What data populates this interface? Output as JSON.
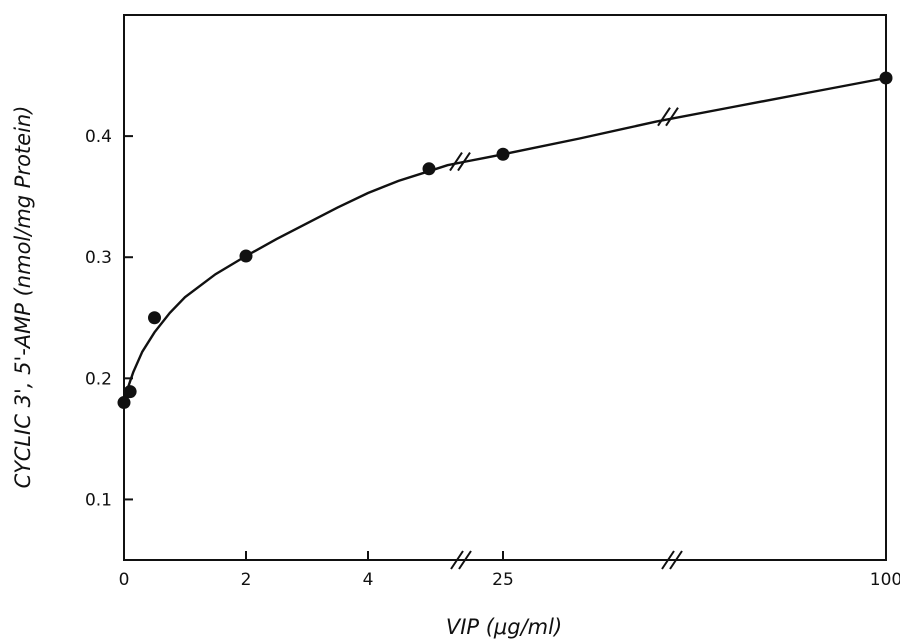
{
  "chart_data": {
    "type": "line",
    "title": "",
    "xlabel": "VIP (μg/ml)",
    "ylabel": "CYCLIC 3', 5'-AMP (nmol/mg Protein)",
    "x_axis_breaks": [
      "between 4 and 25",
      "between 25 and 100"
    ],
    "x_ticks": [
      0,
      2,
      4,
      25,
      100
    ],
    "x_tick_labels": [
      "0",
      "2",
      "4",
      "25",
      "100"
    ],
    "y_ticks": [
      0.1,
      0.2,
      0.3,
      0.4
    ],
    "y_tick_labels": [
      "0.1",
      "0.2",
      "0.3",
      "0.4"
    ],
    "ylim": [
      0.05,
      0.5
    ],
    "grid": false,
    "series": [
      {
        "points": [
          {
            "x": 0,
            "y": 0.18
          },
          {
            "x": 0.1,
            "y": 0.189
          },
          {
            "x": 0.5,
            "y": 0.25
          },
          {
            "x": 2,
            "y": 0.301
          },
          {
            "x": 5,
            "y": 0.373
          },
          {
            "x": 25,
            "y": 0.385
          },
          {
            "x": 100,
            "y": 0.448
          }
        ],
        "fit_curve": [
          {
            "x": 0,
            "y": 0.18
          },
          {
            "x": 0.05,
            "y": 0.19
          },
          {
            "x": 0.15,
            "y": 0.205
          },
          {
            "x": 0.3,
            "y": 0.222
          },
          {
            "x": 0.5,
            "y": 0.238
          },
          {
            "x": 0.75,
            "y": 0.254
          },
          {
            "x": 1,
            "y": 0.267
          },
          {
            "x": 1.5,
            "y": 0.286
          },
          {
            "x": 2,
            "y": 0.301
          },
          {
            "x": 2.5,
            "y": 0.315
          },
          {
            "x": 3,
            "y": 0.328
          },
          {
            "x": 3.5,
            "y": 0.341
          },
          {
            "x": 4,
            "y": 0.353
          },
          {
            "x": 4.5,
            "y": 0.363
          },
          {
            "x": 5,
            "y": 0.371
          },
          {
            "x": 10,
            "y": 0.376
          },
          {
            "x": 15,
            "y": 0.379
          },
          {
            "x": 20,
            "y": 0.382
          },
          {
            "x": 25,
            "y": 0.385
          },
          {
            "x": 40,
            "y": 0.398
          },
          {
            "x": 55,
            "y": 0.412
          },
          {
            "x": 70,
            "y": 0.424
          },
          {
            "x": 85,
            "y": 0.436
          },
          {
            "x": 100,
            "y": 0.448
          }
        ]
      }
    ]
  }
}
